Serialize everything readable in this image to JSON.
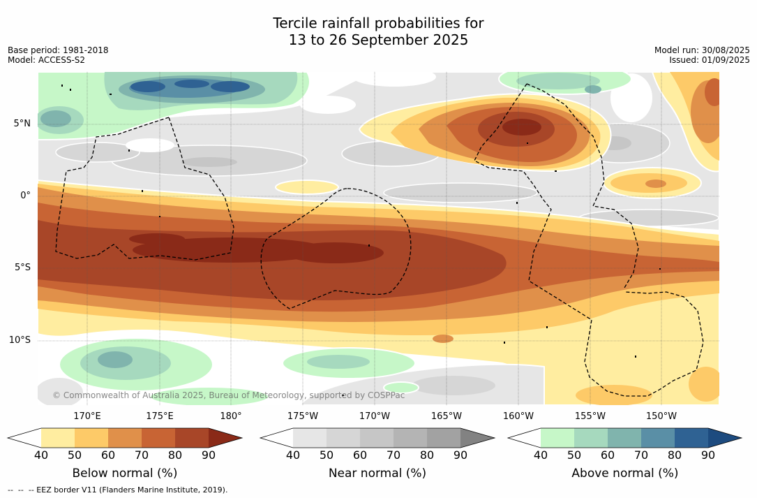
{
  "title": {
    "line1": "Tercile rainfall probabilities for",
    "line2": "13 to 26 September 2025"
  },
  "info_left": {
    "base_period": "Base period: 1981-2018",
    "model": "Model: ACCESS-S2"
  },
  "info_right": {
    "model_run": "Model run: 30/08/2025",
    "issued": "Issued: 01/09/2025"
  },
  "map": {
    "lat_labels": [
      "5°N",
      "0°",
      "5°S",
      "10°S"
    ],
    "lon_labels": [
      "170°E",
      "175°E",
      "180°",
      "175°W",
      "170°W",
      "165°W",
      "160°W",
      "155°W",
      "150°W"
    ],
    "copyright": "© Commonwealth of Australia 2025, Bureau of Meteorology, supported by COSPPac"
  },
  "legends": [
    {
      "label": "Below normal (%)",
      "ticks": [
        "40",
        "50",
        "60",
        "70",
        "80",
        "90"
      ],
      "under_color": "#ffffff",
      "colors": [
        "#ffeda0",
        "#fdca68",
        "#e0904a",
        "#c86434",
        "#a84628"
      ],
      "over_color": "#8a2a18"
    },
    {
      "label": "Near normal (%)",
      "ticks": [
        "40",
        "50",
        "60",
        "70",
        "80",
        "90"
      ],
      "under_color": "#ffffff",
      "colors": [
        "#e6e6e6",
        "#d6d6d6",
        "#c6c6c6",
        "#b4b4b4",
        "#a2a2a2"
      ],
      "over_color": "#828282"
    },
    {
      "label": "Above normal (%)",
      "ticks": [
        "40",
        "50",
        "60",
        "70",
        "80",
        "90"
      ],
      "under_color": "#ffffff",
      "colors": [
        "#c6f7c8",
        "#a6d9be",
        "#80b4ad",
        "#5a8fa6",
        "#2f6293"
      ],
      "over_color": "#1d4b7f"
    }
  ],
  "footer": "--  --  -- EEZ border V11 (Flanders Marine Institute, 2019)."
}
